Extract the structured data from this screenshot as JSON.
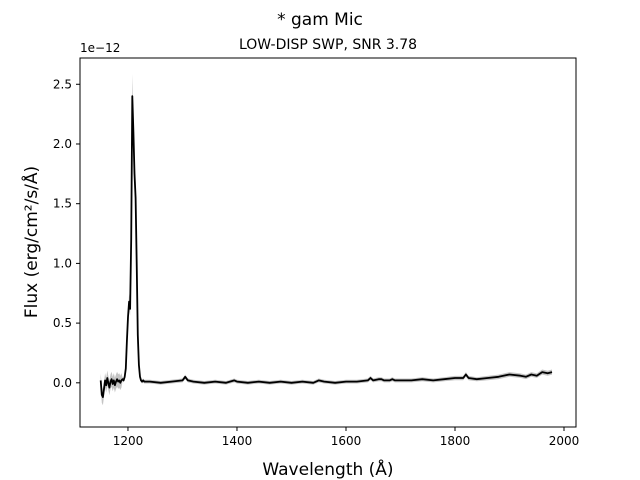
{
  "chart_data": {
    "type": "line",
    "title": "* gam Mic",
    "subtitle": "LOW-DISP SWP, SNR 3.78",
    "xlabel": "Wavelength (Å)",
    "ylabel": "Flux (erg/cm²/s/Å)",
    "offset_text": "1e−12",
    "xlim": [
      1112,
      2022
    ],
    "ylim": [
      -0.37,
      2.72
    ],
    "x_ticks": [
      1200,
      1400,
      1600,
      1800,
      2000
    ],
    "x_tick_labels": [
      "1200",
      "1400",
      "1600",
      "1800",
      "2000"
    ],
    "y_ticks": [
      0.0,
      0.5,
      1.0,
      1.5,
      2.0,
      2.5
    ],
    "y_tick_labels": [
      "0.0",
      "0.5",
      "1.0",
      "1.5",
      "2.0",
      "2.5"
    ],
    "grid": false,
    "series": [
      {
        "color": "#000000",
        "x": [
          1150,
          1152,
          1154,
          1156,
          1158,
          1160,
          1162,
          1164,
          1166,
          1168,
          1170,
          1172,
          1174,
          1176,
          1178,
          1180,
          1182,
          1184,
          1186,
          1188,
          1190,
          1192,
          1194,
          1196,
          1198,
          1200,
          1202,
          1204,
          1206,
          1208,
          1210,
          1212,
          1214,
          1216,
          1218,
          1220,
          1222,
          1224,
          1226,
          1228,
          1230,
          1240,
          1260,
          1280,
          1300,
          1305,
          1310,
          1320,
          1340,
          1360,
          1380,
          1395,
          1400,
          1420,
          1440,
          1460,
          1480,
          1500,
          1520,
          1540,
          1550,
          1560,
          1580,
          1600,
          1620,
          1640,
          1645,
          1650,
          1660,
          1665,
          1670,
          1680,
          1685,
          1690,
          1700,
          1720,
          1740,
          1760,
          1780,
          1800,
          1815,
          1820,
          1825,
          1840,
          1860,
          1880,
          1900,
          1920,
          1930,
          1940,
          1950,
          1960,
          1970,
          1978
        ],
        "y": [
          0.02,
          -0.1,
          -0.12,
          -0.05,
          0.02,
          -0.02,
          0.04,
          0.0,
          -0.04,
          0.01,
          0.03,
          -0.01,
          0.02,
          -0.02,
          0.01,
          0.03,
          0.01,
          0.02,
          0.0,
          0.02,
          0.03,
          0.02,
          0.05,
          0.12,
          0.35,
          0.55,
          0.68,
          0.62,
          1.2,
          2.4,
          2.1,
          1.75,
          1.55,
          1.0,
          0.4,
          0.15,
          0.05,
          0.02,
          0.01,
          0.02,
          0.01,
          0.01,
          0.0,
          0.01,
          0.02,
          0.05,
          0.02,
          0.01,
          0.0,
          0.01,
          0.0,
          0.02,
          0.01,
          0.0,
          0.01,
          0.0,
          0.01,
          0.0,
          0.01,
          0.0,
          0.02,
          0.01,
          0.0,
          0.01,
          0.01,
          0.02,
          0.04,
          0.02,
          0.03,
          0.03,
          0.02,
          0.02,
          0.03,
          0.02,
          0.02,
          0.02,
          0.03,
          0.02,
          0.03,
          0.04,
          0.04,
          0.07,
          0.04,
          0.03,
          0.04,
          0.05,
          0.07,
          0.06,
          0.05,
          0.07,
          0.06,
          0.09,
          0.08,
          0.09
        ]
      }
    ]
  }
}
